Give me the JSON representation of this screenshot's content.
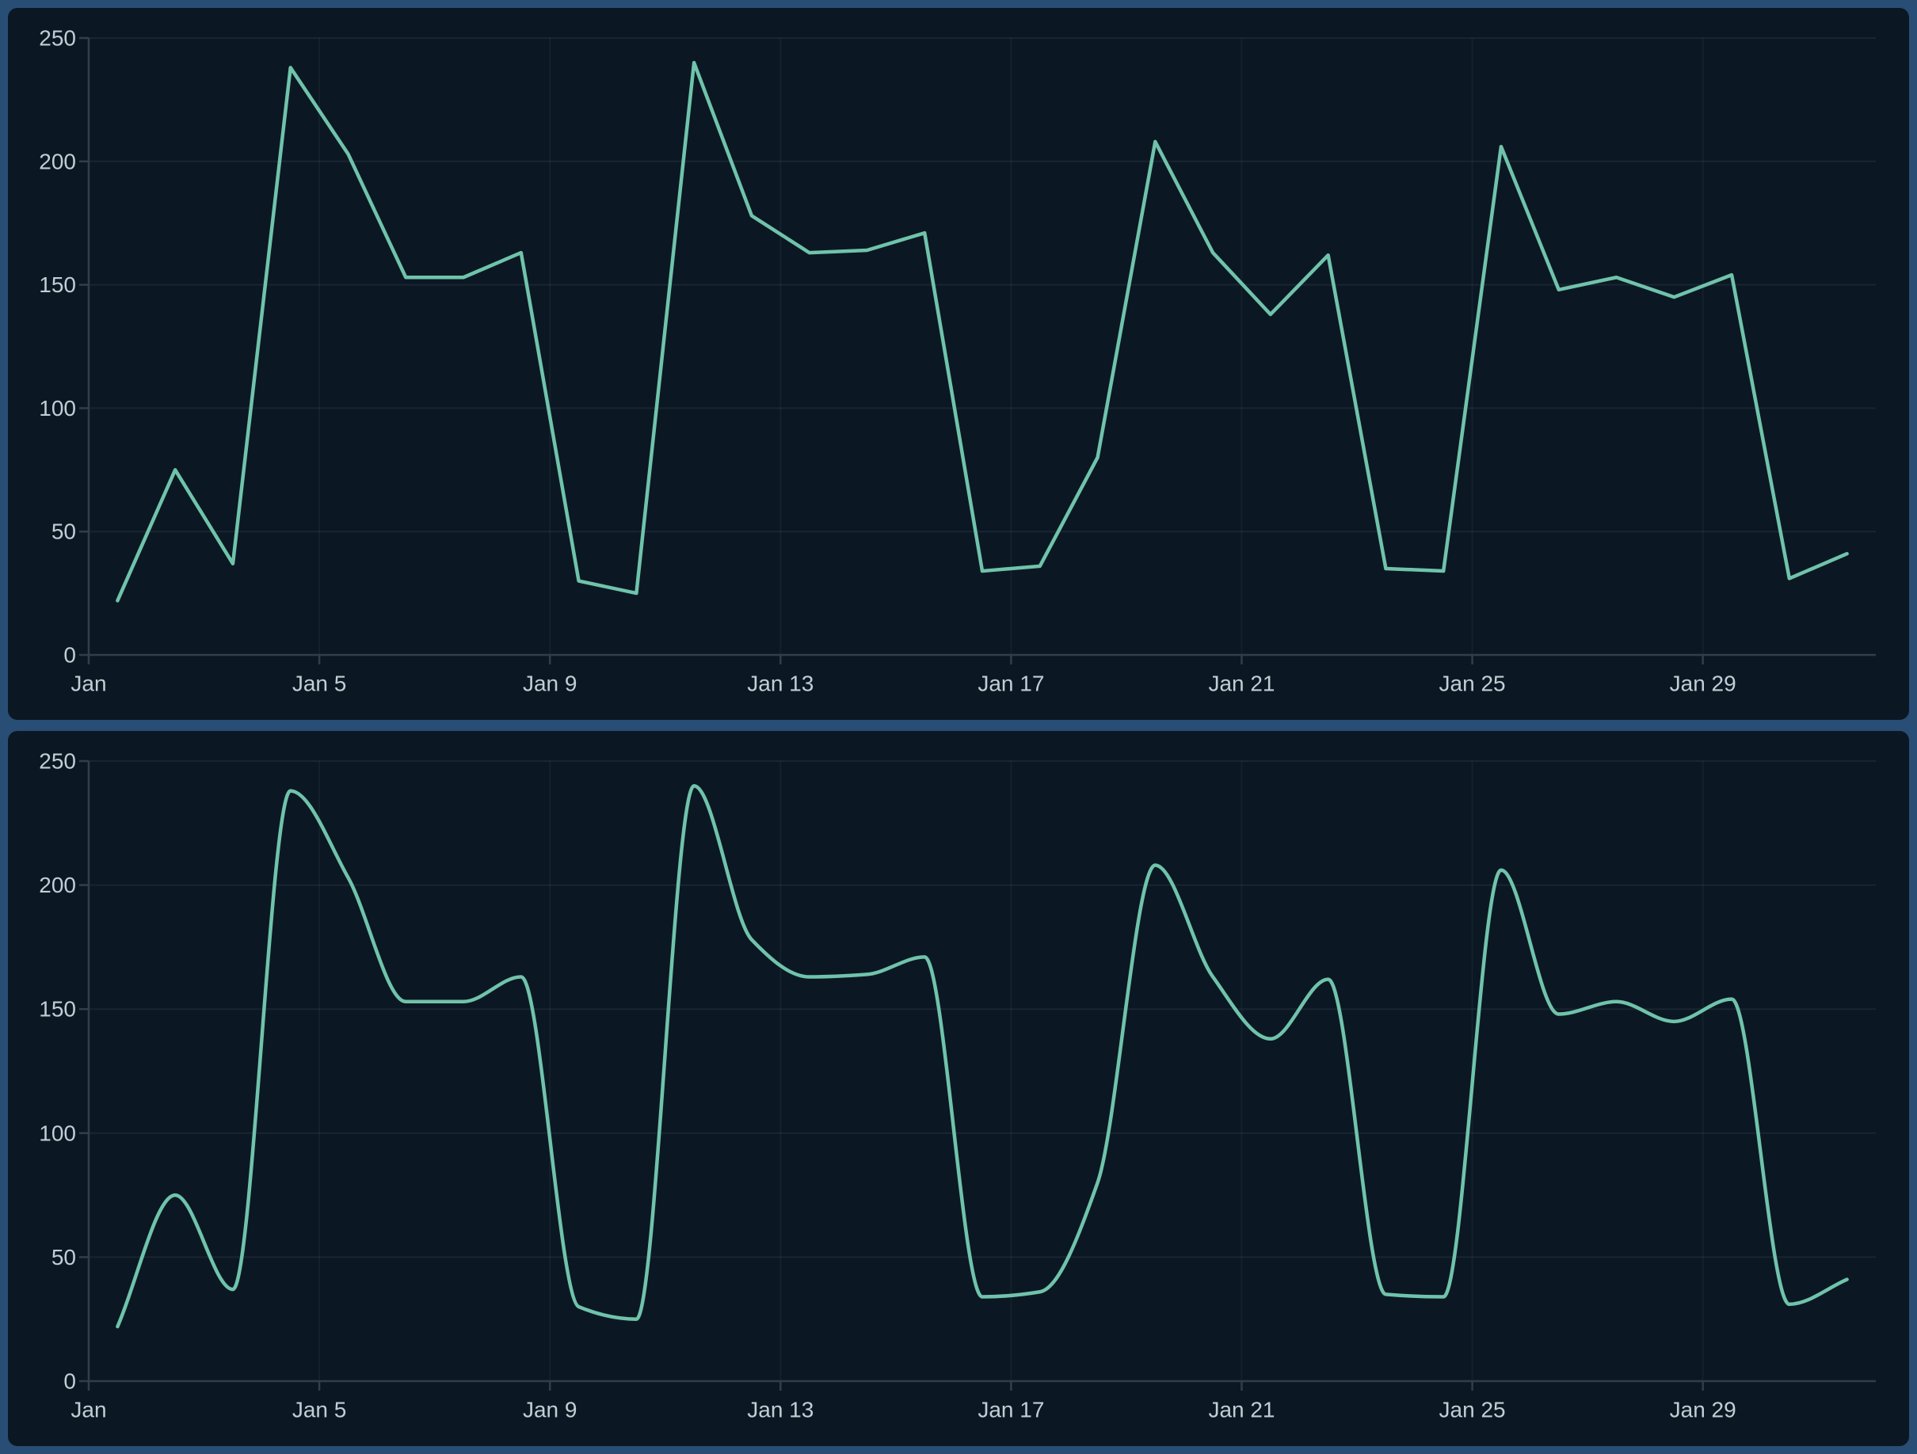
{
  "colors": {
    "page_background": "#284e75",
    "panel_background": "#0b1823",
    "series_line": "#70c3ab",
    "axis_line": "#323e49",
    "grid_horizontal": "rgba(170,200,225,0.085)",
    "grid_vertical": "rgba(170,200,225,0.055)",
    "tick_label_text": "#c3cdd4"
  },
  "chart_data": [
    {
      "id": "top-chart",
      "type": "line",
      "smooth": false,
      "title": "",
      "xlabel": "",
      "ylabel": "",
      "x_unit": "day of January",
      "x": [
        1,
        2,
        3,
        4,
        5,
        6,
        7,
        8,
        9,
        10,
        11,
        12,
        13,
        14,
        15,
        16,
        17,
        18,
        19,
        20,
        21,
        22,
        23,
        24,
        25,
        26,
        27,
        28,
        29,
        30,
        31
      ],
      "series": [
        {
          "name": "daily-value",
          "color": "#70c3ab",
          "values": [
            22,
            75,
            37,
            238,
            203,
            153,
            153,
            163,
            30,
            25,
            240,
            178,
            163,
            164,
            171,
            34,
            36,
            80,
            208,
            163,
            138,
            162,
            35,
            34,
            206,
            148,
            153,
            145,
            154,
            31,
            41
          ]
        }
      ],
      "x_ticks": [
        {
          "day": 1,
          "label": "Jan"
        },
        {
          "day": 5,
          "label": "Jan 5"
        },
        {
          "day": 9,
          "label": "Jan 9"
        },
        {
          "day": 13,
          "label": "Jan 13"
        },
        {
          "day": 17,
          "label": "Jan 17"
        },
        {
          "day": 21,
          "label": "Jan 21"
        },
        {
          "day": 25,
          "label": "Jan 25"
        },
        {
          "day": 29,
          "label": "Jan 29"
        }
      ],
      "y_ticks": [
        0,
        50,
        100,
        150,
        200,
        250
      ],
      "ylim": [
        0,
        250
      ],
      "xlim_days": [
        1,
        32
      ],
      "point_offset_days": 0.5,
      "grid": true,
      "legend": false
    },
    {
      "id": "bottom-chart",
      "type": "line",
      "smooth": true,
      "title": "",
      "xlabel": "",
      "ylabel": "",
      "x_unit": "day of January",
      "x": [
        1,
        2,
        3,
        4,
        5,
        6,
        7,
        8,
        9,
        10,
        11,
        12,
        13,
        14,
        15,
        16,
        17,
        18,
        19,
        20,
        21,
        22,
        23,
        24,
        25,
        26,
        27,
        28,
        29,
        30,
        31
      ],
      "series": [
        {
          "name": "daily-value-smoothed",
          "color": "#70c3ab",
          "values": [
            22,
            75,
            37,
            238,
            203,
            153,
            153,
            163,
            30,
            25,
            240,
            178,
            163,
            164,
            171,
            34,
            36,
            80,
            208,
            163,
            138,
            162,
            35,
            34,
            206,
            148,
            153,
            145,
            154,
            31,
            41
          ]
        }
      ],
      "x_ticks": [
        {
          "day": 1,
          "label": "Jan"
        },
        {
          "day": 5,
          "label": "Jan 5"
        },
        {
          "day": 9,
          "label": "Jan 9"
        },
        {
          "day": 13,
          "label": "Jan 13"
        },
        {
          "day": 17,
          "label": "Jan 17"
        },
        {
          "day": 21,
          "label": "Jan 21"
        },
        {
          "day": 25,
          "label": "Jan 25"
        },
        {
          "day": 29,
          "label": "Jan 29"
        }
      ],
      "y_ticks": [
        0,
        50,
        100,
        150,
        200,
        250
      ],
      "ylim": [
        0,
        250
      ],
      "xlim_days": [
        1,
        32
      ],
      "point_offset_days": 0.5,
      "grid": true,
      "legend": false
    }
  ]
}
